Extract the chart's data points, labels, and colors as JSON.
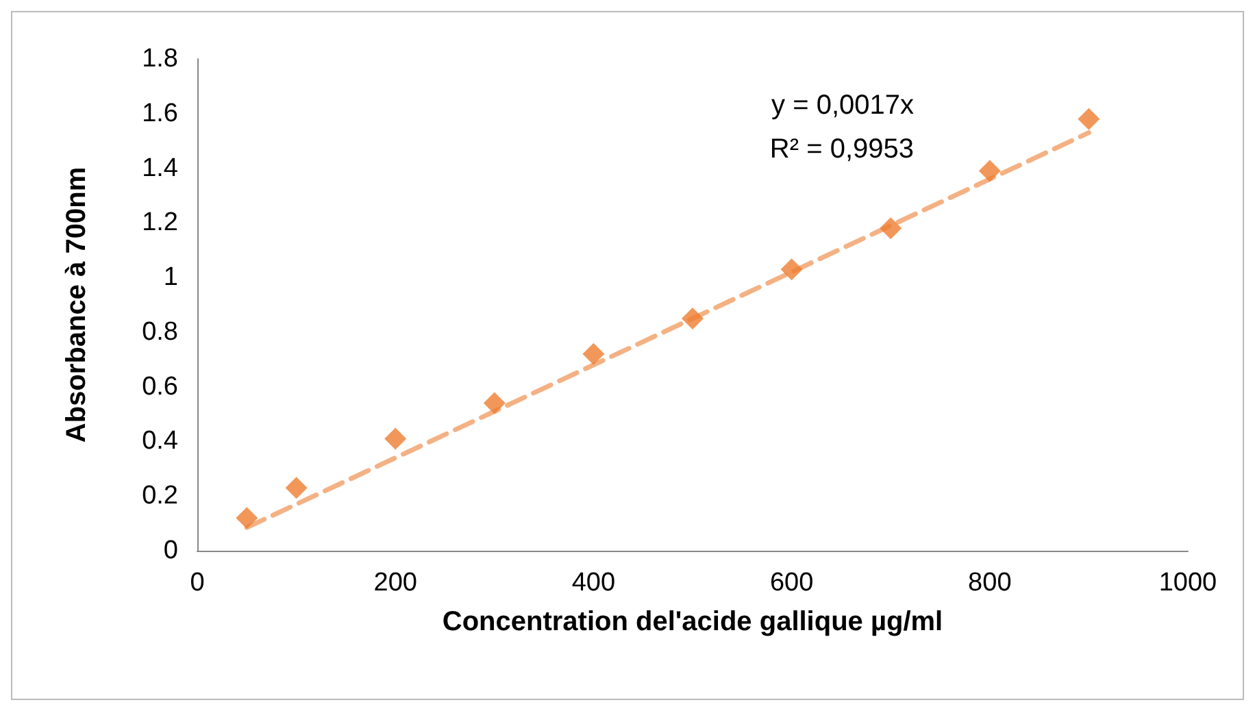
{
  "chart_data": {
    "type": "scatter",
    "xlabel": "Concentration del'acide gallique µg/ml",
    "ylabel": "Absorbance à 700nm",
    "x": [
      50,
      100,
      200,
      300,
      400,
      500,
      600,
      700,
      800,
      900
    ],
    "series": [
      {
        "color": "#ed7d31",
        "marker": "diamond",
        "values": [
          0.12,
          0.23,
          0.41,
          0.54,
          0.72,
          0.85,
          1.03,
          1.18,
          1.39,
          1.58
        ]
      },
      {
        "type": "line",
        "color": "#f4b183",
        "line_style": "dashed",
        "marker": "none",
        "x": [
          50,
          900
        ],
        "values": [
          0.085,
          1.53
        ]
      }
    ],
    "xlim": [
      0,
      1000
    ],
    "xticks": [
      0,
      200,
      400,
      600,
      800,
      1000
    ],
    "ylim": [
      0,
      1.8
    ],
    "yticks": [
      0,
      0.2,
      0.4,
      0.6,
      0.8,
      1,
      1.2,
      1.4,
      1.6,
      1.8
    ],
    "annotations": [
      "y = 0,0017x",
      "R² = 0,9953"
    ],
    "grid": false
  }
}
